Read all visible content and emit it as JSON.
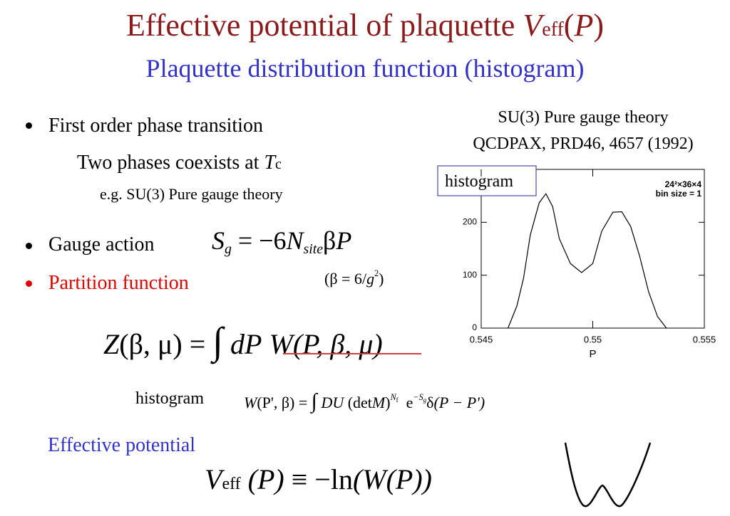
{
  "title": {
    "parts": [
      "Effective potential of plaquette ",
      "V",
      "eff",
      "(",
      "P",
      ")"
    ]
  },
  "subtitle": "Plaquette distribution function (histogram)",
  "bullets": {
    "first_order": "First order phase transition",
    "coexist": [
      "Two phases coexists at ",
      "T",
      "c"
    ],
    "example": "e.g.  SU(3) Pure gauge theory",
    "gauge_action": "Gauge action",
    "partition": "Partition function"
  },
  "formulas": {
    "gauge": [
      "S",
      "g",
      " = −6",
      "N",
      "site",
      "β",
      "P"
    ],
    "beta": [
      "(β = 6",
      "/",
      "g",
      "2",
      ")"
    ],
    "partition": [
      "Z",
      "(β, μ)",
      " = ",
      "∫",
      "dP",
      "W",
      "(P, β, μ)"
    ],
    "histogram_label": "histogram",
    "histogram": [
      "W",
      "(P', β)",
      " = ",
      "∫",
      "DU",
      "(det",
      "M",
      ")",
      "N",
      "f",
      "e",
      "−S",
      "g",
      "δ",
      "(P − P')"
    ],
    "effective_label": "Effective potential",
    "veff": [
      "V",
      "eff",
      " (P) ",
      "≡ −ln",
      "(W(P))"
    ]
  },
  "chart_data": {
    "type": "line",
    "source": [
      "SU(3) Pure gauge theory",
      "QCDPAX, PRD46, 4657 (1992)"
    ],
    "label": "histogram",
    "annotations": [
      "24²×36×4",
      "bin size = 1"
    ],
    "x_label": "P",
    "color": "#000000",
    "x": [
      0.5462,
      0.5466,
      0.5469,
      0.5472,
      0.5476,
      0.5479,
      0.5482,
      0.5485,
      0.549,
      0.5495,
      0.55,
      0.5504,
      0.5509,
      0.5513,
      0.5517,
      0.5521,
      0.5525,
      0.5529,
      0.5533
    ],
    "values": [
      0,
      42,
      95,
      176,
      237,
      254,
      230,
      169,
      122,
      105,
      122,
      183,
      219,
      220,
      192,
      136,
      69,
      22,
      0
    ],
    "xlim": [
      0.545,
      0.555
    ],
    "xticks": [
      0.545,
      0.55,
      0.555
    ],
    "ylim": [
      0,
      300
    ],
    "yticks": [
      0,
      100,
      200
    ]
  }
}
